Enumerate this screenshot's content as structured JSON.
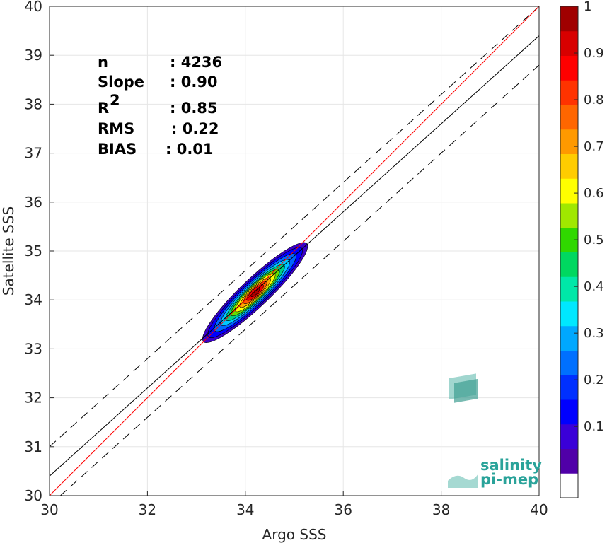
{
  "chart_data": {
    "type": "contour-scatter",
    "xlabel": "Argo SSS",
    "ylabel": "Satellite SSS",
    "xlim": [
      30,
      40
    ],
    "ylim": [
      30,
      40
    ],
    "xticks": [
      "30",
      "32",
      "34",
      "36",
      "38",
      "40"
    ],
    "yticks": [
      "30",
      "31",
      "32",
      "33",
      "34",
      "35",
      "36",
      "37",
      "38",
      "39",
      "40"
    ],
    "grid": true,
    "stats": [
      {
        "label": "n",
        "value": ": 4236"
      },
      {
        "label": "Slope",
        "value": ": 0.90"
      },
      {
        "label": "R",
        "sup": "2",
        "value": ": 0.85"
      },
      {
        "label": "RMS",
        "value": ": 0.22"
      },
      {
        "label": "BIAS",
        "value": ": 0.01"
      }
    ],
    "lines": {
      "identity": {
        "color": "#ff0000",
        "slope": 1.0,
        "intercept": 0.0
      },
      "regression": {
        "color": "#000000",
        "slope": 0.9,
        "intercept": 3.4
      },
      "envelope_upper": {
        "color": "#000000",
        "style": "dashed",
        "slope": 0.9,
        "intercept": 4.0
      },
      "envelope_lower": {
        "color": "#000000",
        "style": "dashed",
        "slope": 0.9,
        "intercept": 2.8
      }
    },
    "density": {
      "center": [
        34.2,
        34.15
      ],
      "levels": [
        {
          "level": 0.05,
          "color": "#3b00c8",
          "rx": 2.05,
          "ry": 0.23
        },
        {
          "level": 0.15,
          "color": "#0000ff",
          "rx": 1.85,
          "ry": 0.2
        },
        {
          "level": 0.25,
          "color": "#0066ff",
          "rx": 1.6,
          "ry": 0.175
        },
        {
          "level": 0.35,
          "color": "#00c8ff",
          "rx": 1.35,
          "ry": 0.15
        },
        {
          "level": 0.45,
          "color": "#00d080",
          "rx": 1.15,
          "ry": 0.13
        },
        {
          "level": 0.55,
          "color": "#66dd00",
          "rx": 0.95,
          "ry": 0.115
        },
        {
          "level": 0.62,
          "color": "#ffff00",
          "rx": 0.78,
          "ry": 0.1
        },
        {
          "level": 0.72,
          "color": "#ffaa00",
          "rx": 0.6,
          "ry": 0.085
        },
        {
          "level": 0.82,
          "color": "#ff5500",
          "rx": 0.45,
          "ry": 0.07
        },
        {
          "level": 0.92,
          "color": "#ee0000",
          "rx": 0.32,
          "ry": 0.055
        },
        {
          "level": 1.0,
          "color": "#aa0000",
          "rx": 0.16,
          "ry": 0.035
        }
      ]
    },
    "colorbar": {
      "colors": [
        "#ffffff",
        "#5000a8",
        "#3a00d8",
        "#0000ff",
        "#0030ff",
        "#0070ff",
        "#00a8ff",
        "#00e8ff",
        "#00e8a8",
        "#00d860",
        "#30d800",
        "#a0e800",
        "#ffff00",
        "#ffcc00",
        "#ff9900",
        "#ff6600",
        "#ff3300",
        "#ff0000",
        "#d80000",
        "#a00000"
      ],
      "ticks": [
        "0.1",
        "0.2",
        "0.3",
        "0.4",
        "0.5",
        "0.6",
        "0.7",
        "0.8",
        "0.9",
        "1"
      ],
      "tick_values": [
        0.1,
        0.2,
        0.3,
        0.4,
        0.5,
        0.6,
        0.7,
        0.8,
        0.9,
        1.0
      ]
    }
  },
  "logo": {
    "line1": "salinity",
    "line2": "pi-mep"
  }
}
